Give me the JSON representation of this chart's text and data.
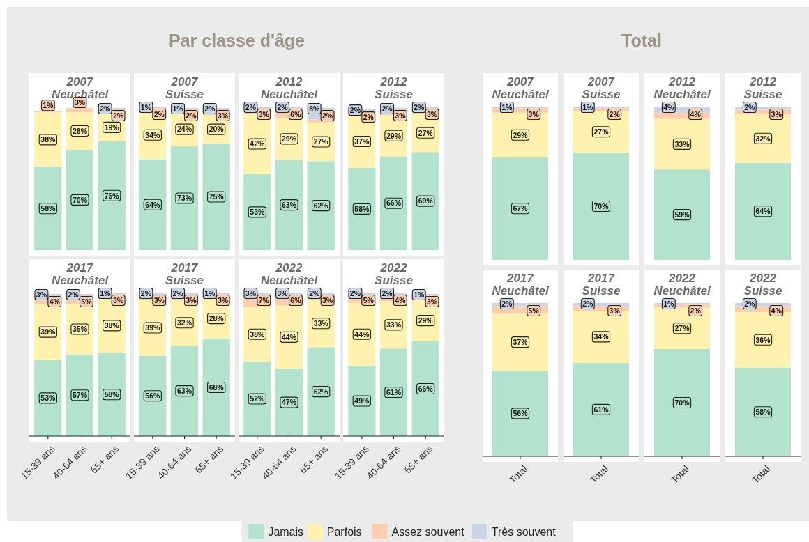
{
  "chart_data": [
    {
      "type": "other",
      "title": "Par classe d'âge"
    },
    {
      "type": "bar",
      "stacked": true,
      "title": "2007\nNeuchâtel",
      "categories": [
        null,
        null,
        null
      ],
      "ylim": [
        0,
        100
      ],
      "tick_labels": false,
      "legend": "bottom",
      "series": [
        {
          "name": "Jamais",
          "color": "#b3e2cd",
          "values": [
            58,
            70,
            76
          ],
          "value_labels": [
            "58%",
            "70%",
            "76%"
          ]
        },
        {
          "name": "Parfois",
          "color": "#fff2ae",
          "values": [
            38,
            26,
            19
          ],
          "value_labels": [
            "38%",
            "26%",
            "19%"
          ]
        },
        {
          "name": "Assez souvent",
          "color": "#fdcdac",
          "values": [
            1,
            3,
            2
          ],
          "value_labels": [
            "1%",
            "3%",
            "2%"
          ]
        },
        {
          "name": "Très souvent",
          "color": "#cbd5e8",
          "values": [
            null,
            null,
            2
          ],
          "value_labels": [
            null,
            null,
            "2%"
          ]
        }
      ]
    },
    {
      "type": "bar",
      "stacked": true,
      "title": "2007\nSuisse",
      "categories": [
        null,
        null,
        null
      ],
      "ylim": [
        0,
        101
      ],
      "tick_labels": false,
      "series": [
        {
          "color": "#b3e2cd",
          "values": [
            64,
            73,
            75
          ],
          "value_labels": [
            "64%",
            "73%",
            "75%"
          ]
        },
        {
          "color": "#fff2ae",
          "values": [
            34,
            24,
            20
          ],
          "value_labels": [
            "34%",
            "24%",
            "20%"
          ]
        },
        {
          "color": "#fdcdac",
          "values": [
            2,
            2,
            3
          ],
          "value_labels": [
            "2%",
            "2%",
            "3%"
          ]
        },
        {
          "color": "#cbd5e8",
          "values": [
            1,
            1,
            2
          ],
          "value_labels": [
            "1%",
            "1%",
            "2%"
          ]
        }
      ]
    },
    {
      "type": "bar",
      "stacked": true,
      "title": "2012\nNeuchâtel",
      "categories": [
        null,
        null,
        null
      ],
      "ylim": [
        0,
        100
      ],
      "tick_labels": false,
      "series": [
        {
          "color": "#b3e2cd",
          "values": [
            53,
            63,
            62
          ],
          "value_labels": [
            "53%",
            "63%",
            "62%"
          ]
        },
        {
          "color": "#fff2ae",
          "values": [
            42,
            29,
            27
          ],
          "value_labels": [
            "42%",
            "29%",
            "27%"
          ]
        },
        {
          "color": "#fdcdac",
          "values": [
            3,
            6,
            2
          ],
          "value_labels": [
            "3%",
            "6%",
            "2%"
          ]
        },
        {
          "color": "#cbd5e8",
          "values": [
            2,
            2,
            8
          ],
          "value_labels": [
            "2%",
            "2%",
            "8%"
          ]
        }
      ]
    },
    {
      "type": "bar",
      "stacked": true,
      "title": "2012\nSuisse",
      "categories": [
        null,
        null,
        null
      ],
      "ylim": [
        0,
        101
      ],
      "tick_labels": false,
      "series": [
        {
          "color": "#b3e2cd",
          "values": [
            58,
            66,
            69
          ],
          "value_labels": [
            "58%",
            "66%",
            "69%"
          ]
        },
        {
          "color": "#fff2ae",
          "values": [
            37,
            29,
            27
          ],
          "value_labels": [
            "37%",
            "29%",
            "27%"
          ]
        },
        {
          "color": "#fdcdac",
          "values": [
            2,
            3,
            3
          ],
          "value_labels": [
            "2%",
            "3%",
            "3%"
          ]
        },
        {
          "color": "#cbd5e8",
          "values": [
            2,
            2,
            2
          ],
          "value_labels": [
            "2%",
            "2%",
            "2%"
          ]
        }
      ]
    },
    {
      "type": "bar",
      "stacked": true,
      "title": "2017\nNeuchâtel",
      "categories": [
        "15-39 ans",
        "40-64 ans",
        "65+ ans"
      ],
      "ylim": [
        0,
        100
      ],
      "tick_labels": "x",
      "series": [
        {
          "color": "#b3e2cd",
          "values": [
            53,
            57,
            58
          ],
          "value_labels": [
            "53%",
            "57%",
            "58%"
          ]
        },
        {
          "color": "#fff2ae",
          "values": [
            39,
            35,
            38
          ],
          "value_labels": [
            "39%",
            "35%",
            "38%"
          ]
        },
        {
          "color": "#fdcdac",
          "values": [
            4,
            5,
            3
          ],
          "value_labels": [
            "4%",
            "5%",
            "3%"
          ]
        },
        {
          "color": "#cbd5e8",
          "values": [
            3,
            2,
            1
          ],
          "value_labels": [
            "3%",
            "2%",
            "1%"
          ]
        }
      ]
    },
    {
      "type": "bar",
      "stacked": true,
      "title": "2017\nSuisse",
      "categories": [
        "15-39 ans",
        "40-64 ans",
        "65+ ans"
      ],
      "ylim": [
        0,
        100
      ],
      "tick_labels": "x",
      "series": [
        {
          "color": "#b3e2cd",
          "values": [
            56,
            63,
            68
          ],
          "value_labels": [
            "56%",
            "63%",
            "68%"
          ]
        },
        {
          "color": "#fff2ae",
          "values": [
            39,
            32,
            28
          ],
          "value_labels": [
            "39%",
            "32%",
            "28%"
          ]
        },
        {
          "color": "#fdcdac",
          "values": [
            3,
            3,
            3
          ],
          "value_labels": [
            "3%",
            "3%",
            "3%"
          ]
        },
        {
          "color": "#cbd5e8",
          "values": [
            2,
            2,
            1
          ],
          "value_labels": [
            "2%",
            "2%",
            "1%"
          ]
        }
      ]
    },
    {
      "type": "bar",
      "stacked": true,
      "title": "2022\nNeuchâtel",
      "categories": [
        "15-39 ans",
        "40-64 ans",
        "65+ ans"
      ],
      "ylim": [
        0,
        100
      ],
      "tick_labels": "x",
      "series": [
        {
          "color": "#b3e2cd",
          "values": [
            52,
            47,
            62
          ],
          "value_labels": [
            "52%",
            "47%",
            "62%"
          ]
        },
        {
          "color": "#fff2ae",
          "values": [
            38,
            44,
            33
          ],
          "value_labels": [
            "38%",
            "44%",
            "33%"
          ]
        },
        {
          "color": "#fdcdac",
          "values": [
            7,
            6,
            3
          ],
          "value_labels": [
            "7%",
            "6%",
            "3%"
          ]
        },
        {
          "color": "#cbd5e8",
          "values": [
            3,
            3,
            2
          ],
          "value_labels": [
            "3%",
            "3%",
            "2%"
          ]
        }
      ]
    },
    {
      "type": "bar",
      "stacked": true,
      "title": "2022\nSuisse",
      "categories": [
        "15-39 ans",
        "40-64 ans",
        "65+ ans"
      ],
      "ylim": [
        0,
        100
      ],
      "tick_labels": "x",
      "series": [
        {
          "color": "#b3e2cd",
          "values": [
            49,
            61,
            66
          ],
          "value_labels": [
            "49%",
            "61%",
            "66%"
          ]
        },
        {
          "color": "#fff2ae",
          "values": [
            44,
            33,
            29
          ],
          "value_labels": [
            "44%",
            "33%",
            "29%"
          ]
        },
        {
          "color": "#fdcdac",
          "values": [
            5,
            4,
            3
          ],
          "value_labels": [
            "5%",
            "4%",
            "3%"
          ]
        },
        {
          "color": "#cbd5e8",
          "values": [
            2,
            2,
            1
          ],
          "value_labels": [
            "2%",
            "2%",
            "1%"
          ]
        }
      ]
    },
    {
      "type": "other",
      "title": "Total"
    },
    {
      "type": "bar",
      "stacked": true,
      "title": "2007\nNeuchâtel",
      "categories": [
        null
      ],
      "ylim": [
        0,
        100
      ],
      "tick_labels": false,
      "series": [
        {
          "color": "#b3e2cd",
          "values": [
            67
          ],
          "value_labels": [
            "67%"
          ]
        },
        {
          "color": "#fff2ae",
          "values": [
            29
          ],
          "value_labels": [
            "29%"
          ]
        },
        {
          "color": "#fdcdac",
          "values": [
            3
          ],
          "value_labels": [
            "3%"
          ]
        },
        {
          "color": "#cbd5e8",
          "values": [
            1
          ],
          "value_labels": [
            "1%"
          ]
        }
      ]
    },
    {
      "type": "bar",
      "stacked": true,
      "title": "2007\nSuisse",
      "categories": [
        null
      ],
      "ylim": [
        0,
        100
      ],
      "tick_labels": false,
      "series": [
        {
          "color": "#b3e2cd",
          "values": [
            70
          ],
          "value_labels": [
            "70%"
          ]
        },
        {
          "color": "#fff2ae",
          "values": [
            27
          ],
          "value_labels": [
            "27%"
          ]
        },
        {
          "color": "#fdcdac",
          "values": [
            2
          ],
          "value_labels": [
            "2%"
          ]
        },
        {
          "color": "#cbd5e8",
          "values": [
            1
          ],
          "value_labels": [
            "1%"
          ]
        }
      ]
    },
    {
      "type": "bar",
      "stacked": true,
      "title": "2012\nNeuchâtel",
      "categories": [
        null
      ],
      "ylim": [
        0,
        100
      ],
      "tick_labels": false,
      "series": [
        {
          "color": "#b3e2cd",
          "values": [
            59
          ],
          "value_labels": [
            "59%"
          ]
        },
        {
          "color": "#fff2ae",
          "values": [
            33
          ],
          "value_labels": [
            "33%"
          ]
        },
        {
          "color": "#fdcdac",
          "values": [
            4
          ],
          "value_labels": [
            "4%"
          ]
        },
        {
          "color": "#cbd5e8",
          "values": [
            4
          ],
          "value_labels": [
            "4%"
          ]
        }
      ]
    },
    {
      "type": "bar",
      "stacked": true,
      "title": "2012\nSuisse",
      "categories": [
        null
      ],
      "ylim": [
        0,
        101
      ],
      "tick_labels": false,
      "series": [
        {
          "color": "#b3e2cd",
          "values": [
            64
          ],
          "value_labels": [
            "64%"
          ]
        },
        {
          "color": "#fff2ae",
          "values": [
            32
          ],
          "value_labels": [
            "32%"
          ]
        },
        {
          "color": "#fdcdac",
          "values": [
            3
          ],
          "value_labels": [
            "3%"
          ]
        },
        {
          "color": "#cbd5e8",
          "values": [
            2
          ],
          "value_labels": [
            "2%"
          ]
        }
      ]
    },
    {
      "type": "bar",
      "stacked": true,
      "title": "2017\nNeuchâtel",
      "categories": [
        "Total"
      ],
      "ylim": [
        0,
        100
      ],
      "tick_labels": "x",
      "series": [
        {
          "color": "#b3e2cd",
          "values": [
            56
          ],
          "value_labels": [
            "56%"
          ]
        },
        {
          "color": "#fff2ae",
          "values": [
            37
          ],
          "value_labels": [
            "37%"
          ]
        },
        {
          "color": "#fdcdac",
          "values": [
            5
          ],
          "value_labels": [
            "5%"
          ]
        },
        {
          "color": "#cbd5e8",
          "values": [
            2
          ],
          "value_labels": [
            "2%"
          ]
        }
      ]
    },
    {
      "type": "bar",
      "stacked": true,
      "title": "2017\nSuisse",
      "categories": [
        "Total"
      ],
      "ylim": [
        0,
        100
      ],
      "tick_labels": "x",
      "series": [
        {
          "color": "#b3e2cd",
          "values": [
            61
          ],
          "value_labels": [
            "61%"
          ]
        },
        {
          "color": "#fff2ae",
          "values": [
            34
          ],
          "value_labels": [
            "34%"
          ]
        },
        {
          "color": "#fdcdac",
          "values": [
            3
          ],
          "value_labels": [
            "3%"
          ]
        },
        {
          "color": "#cbd5e8",
          "values": [
            2
          ],
          "value_labels": [
            "2%"
          ]
        }
      ]
    },
    {
      "type": "bar",
      "stacked": true,
      "title": "2022\nNeuchâtel",
      "categories": [
        "Total"
      ],
      "ylim": [
        0,
        100
      ],
      "tick_labels": "x",
      "series": [
        {
          "color": "#b3e2cd",
          "values": [
            70
          ],
          "value_labels": [
            "70%"
          ]
        },
        {
          "color": "#fff2ae",
          "values": [
            27
          ],
          "value_labels": [
            "27%"
          ]
        },
        {
          "color": "#fdcdac",
          "values": [
            2
          ],
          "value_labels": [
            "2%"
          ]
        },
        {
          "color": "#cbd5e8",
          "values": [
            1
          ],
          "value_labels": [
            "1%"
          ]
        }
      ]
    },
    {
      "type": "bar",
      "stacked": true,
      "title": "2022\nSuisse",
      "categories": [
        "Total"
      ],
      "ylim": [
        0,
        100
      ],
      "tick_labels": "x",
      "series": [
        {
          "color": "#b3e2cd",
          "values": [
            58
          ],
          "value_labels": [
            "58%"
          ]
        },
        {
          "color": "#fff2ae",
          "values": [
            36
          ],
          "value_labels": [
            "36%"
          ]
        },
        {
          "color": "#fdcdac",
          "values": [
            4
          ],
          "value_labels": [
            "4%"
          ]
        },
        {
          "color": "#cbd5e8",
          "values": [
            2
          ],
          "value_labels": [
            "2%"
          ]
        }
      ]
    }
  ]
}
